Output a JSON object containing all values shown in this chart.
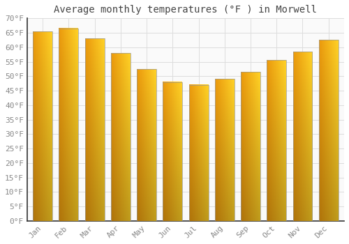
{
  "months": [
    "Jan",
    "Feb",
    "Mar",
    "Apr",
    "May",
    "Jun",
    "Jul",
    "Aug",
    "Sep",
    "Oct",
    "Nov",
    "Dec"
  ],
  "values": [
    65.5,
    66.5,
    63.0,
    58.0,
    52.5,
    48.0,
    47.0,
    49.0,
    51.5,
    55.5,
    58.5,
    62.5
  ],
  "bar_color_top": "#FFCC33",
  "bar_color_bottom": "#F5A500",
  "bar_color_left": "#F0A000",
  "bar_edge_color": "#999999",
  "title": "Average monthly temperatures (°F ) in Morwell",
  "ylim": [
    0,
    70
  ],
  "ytick_step": 5,
  "background_color": "#FFFFFF",
  "plot_bg_color": "#FAFAFA",
  "grid_color": "#DDDDDD",
  "title_fontsize": 10,
  "tick_fontsize": 8,
  "font_family": "monospace",
  "tick_color": "#888888",
  "spine_color": "#333333"
}
